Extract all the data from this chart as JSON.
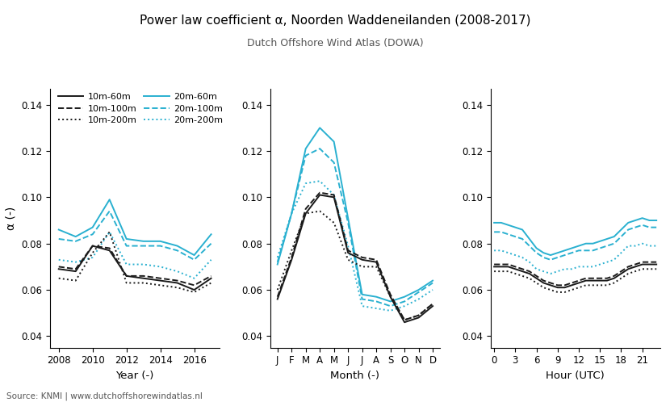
{
  "title": "Power law coefficient α, Noorden Waddeneilanden (2008-2017)",
  "subtitle": "Dutch Offshore Wind Atlas (DOWA)",
  "source": "Source: KNMI | www.dutchoffshorewindatlas.nl",
  "ylabel": "α (-)",
  "ylim": [
    0.035,
    0.147
  ],
  "yticks": [
    0.04,
    0.06,
    0.08,
    0.1,
    0.12,
    0.14
  ],
  "black_color": "#1a1a1a",
  "cyan_color": "#29b0d0",
  "panel1": {
    "xlabel": "Year (-)",
    "x": [
      2008,
      2009,
      2010,
      2011,
      2012,
      2013,
      2014,
      2015,
      2016,
      2017
    ],
    "xlim": [
      2007.5,
      2017.5
    ],
    "xticks": [
      2008,
      2010,
      2012,
      2014,
      2016
    ],
    "series": {
      "bk_solid": [
        0.069,
        0.068,
        0.079,
        0.077,
        0.066,
        0.065,
        0.064,
        0.063,
        0.06,
        0.065
      ],
      "bk_dashed": [
        0.07,
        0.069,
        0.079,
        0.078,
        0.066,
        0.066,
        0.065,
        0.064,
        0.062,
        0.066
      ],
      "bk_dotted": [
        0.065,
        0.064,
        0.076,
        0.085,
        0.063,
        0.063,
        0.062,
        0.061,
        0.059,
        0.063
      ],
      "cy_solid": [
        0.086,
        0.083,
        0.087,
        0.099,
        0.082,
        0.081,
        0.081,
        0.079,
        0.075,
        0.084
      ],
      "cy_dashed": [
        0.082,
        0.081,
        0.084,
        0.094,
        0.079,
        0.079,
        0.079,
        0.077,
        0.073,
        0.08
      ],
      "cy_dotted": [
        0.073,
        0.072,
        0.074,
        0.085,
        0.071,
        0.071,
        0.07,
        0.068,
        0.065,
        0.073
      ]
    }
  },
  "panel2": {
    "xlabel": "Month (-)",
    "x": [
      1,
      2,
      3,
      4,
      5,
      6,
      7,
      8,
      9,
      10,
      11,
      12
    ],
    "xlabels": [
      "J",
      "F",
      "M",
      "A",
      "M",
      "J",
      "J",
      "A",
      "S",
      "O",
      "N",
      "D"
    ],
    "series": {
      "bk_solid": [
        0.056,
        0.073,
        0.093,
        0.101,
        0.1,
        0.076,
        0.073,
        0.072,
        0.057,
        0.046,
        0.048,
        0.053
      ],
      "bk_dashed": [
        0.057,
        0.074,
        0.095,
        0.102,
        0.101,
        0.077,
        0.074,
        0.073,
        0.058,
        0.047,
        0.049,
        0.054
      ],
      "bk_dotted": [
        0.06,
        0.077,
        0.093,
        0.094,
        0.089,
        0.073,
        0.07,
        0.07,
        0.057,
        0.047,
        0.049,
        0.054
      ],
      "cy_solid": [
        0.071,
        0.093,
        0.121,
        0.13,
        0.124,
        0.091,
        0.058,
        0.057,
        0.055,
        0.057,
        0.06,
        0.064
      ],
      "cy_dashed": [
        0.072,
        0.093,
        0.118,
        0.121,
        0.115,
        0.089,
        0.056,
        0.055,
        0.053,
        0.055,
        0.059,
        0.063
      ],
      "cy_dotted": [
        0.074,
        0.093,
        0.106,
        0.107,
        0.101,
        0.079,
        0.053,
        0.052,
        0.051,
        0.053,
        0.056,
        0.06
      ]
    }
  },
  "panel3": {
    "xlabel": "Hour (UTC)",
    "x": [
      0,
      1,
      2,
      3,
      4,
      5,
      6,
      7,
      8,
      9,
      10,
      11,
      12,
      13,
      14,
      15,
      16,
      17,
      18,
      19,
      20,
      21,
      22,
      23
    ],
    "xticks": [
      0,
      3,
      6,
      9,
      12,
      15,
      18,
      21
    ],
    "series": {
      "bk_solid": [
        0.07,
        0.07,
        0.07,
        0.069,
        0.068,
        0.067,
        0.065,
        0.063,
        0.062,
        0.061,
        0.061,
        0.062,
        0.063,
        0.064,
        0.064,
        0.064,
        0.064,
        0.065,
        0.067,
        0.069,
        0.07,
        0.071,
        0.071,
        0.071
      ],
      "bk_dashed": [
        0.071,
        0.071,
        0.071,
        0.07,
        0.069,
        0.068,
        0.066,
        0.064,
        0.063,
        0.062,
        0.062,
        0.063,
        0.064,
        0.065,
        0.065,
        0.065,
        0.065,
        0.066,
        0.068,
        0.07,
        0.071,
        0.072,
        0.072,
        0.072
      ],
      "bk_dotted": [
        0.068,
        0.068,
        0.068,
        0.067,
        0.066,
        0.065,
        0.063,
        0.061,
        0.06,
        0.059,
        0.059,
        0.06,
        0.061,
        0.062,
        0.062,
        0.062,
        0.062,
        0.063,
        0.065,
        0.067,
        0.068,
        0.069,
        0.069,
        0.069
      ],
      "cy_solid": [
        0.089,
        0.089,
        0.088,
        0.087,
        0.086,
        0.082,
        0.078,
        0.076,
        0.075,
        0.076,
        0.077,
        0.078,
        0.079,
        0.08,
        0.08,
        0.081,
        0.082,
        0.083,
        0.086,
        0.089,
        0.09,
        0.091,
        0.09,
        0.09
      ],
      "cy_dashed": [
        0.085,
        0.085,
        0.084,
        0.083,
        0.082,
        0.079,
        0.076,
        0.074,
        0.073,
        0.074,
        0.075,
        0.076,
        0.077,
        0.077,
        0.077,
        0.078,
        0.079,
        0.08,
        0.083,
        0.086,
        0.087,
        0.088,
        0.087,
        0.087
      ],
      "cy_dotted": [
        0.077,
        0.077,
        0.076,
        0.075,
        0.074,
        0.072,
        0.069,
        0.068,
        0.067,
        0.068,
        0.069,
        0.069,
        0.07,
        0.07,
        0.07,
        0.071,
        0.072,
        0.073,
        0.076,
        0.079,
        0.079,
        0.08,
        0.079,
        0.079
      ]
    }
  }
}
